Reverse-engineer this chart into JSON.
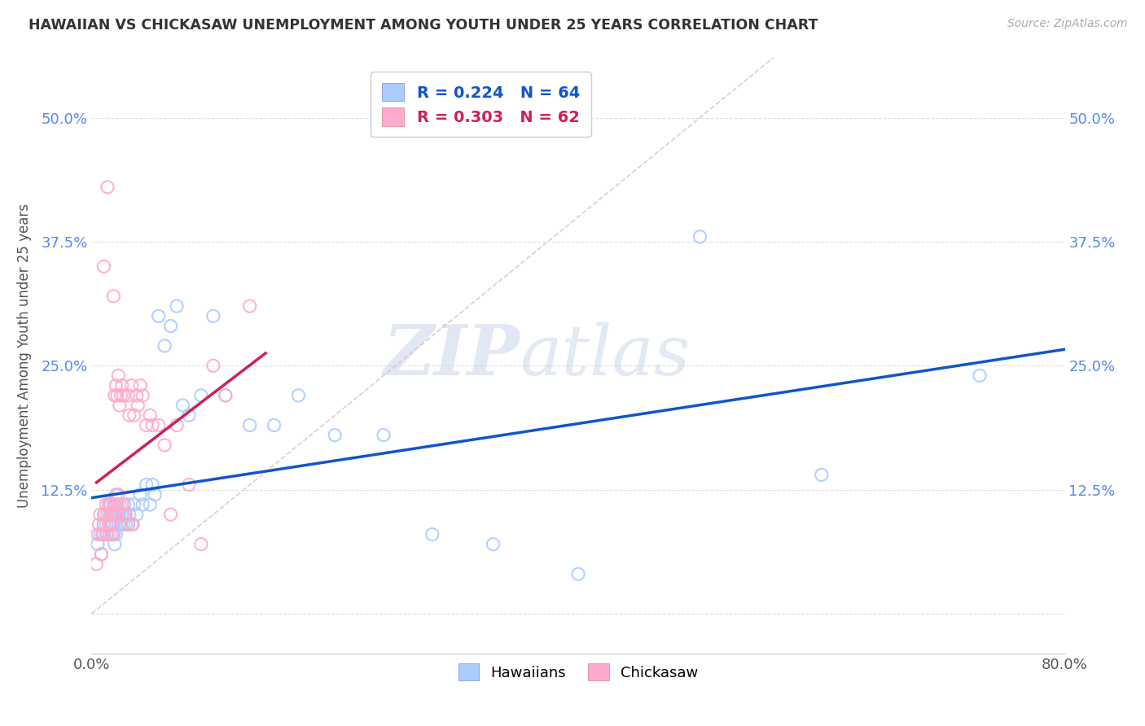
{
  "title": "HAWAIIAN VS CHICKASAW UNEMPLOYMENT AMONG YOUTH UNDER 25 YEARS CORRELATION CHART",
  "source": "Source: ZipAtlas.com",
  "ylabel": "Unemployment Among Youth under 25 years",
  "xlim": [
    0.0,
    0.8
  ],
  "ylim": [
    -0.04,
    0.56
  ],
  "xticks": [
    0.0,
    0.1,
    0.2,
    0.3,
    0.4,
    0.5,
    0.6,
    0.7,
    0.8
  ],
  "xticklabels": [
    "0.0%",
    "",
    "",
    "",
    "",
    "",
    "",
    "",
    "80.0%"
  ],
  "yticks": [
    0.0,
    0.125,
    0.25,
    0.375,
    0.5
  ],
  "yticklabels": [
    "",
    "12.5%",
    "25.0%",
    "37.5%",
    "50.0%"
  ],
  "hawaiians_R": "0.224",
  "hawaiians_N": "64",
  "chickasaw_R": "0.303",
  "chickasaw_N": "62",
  "hawaiians_color": "#aaccff",
  "chickasaw_color": "#ffaacc",
  "hawaiians_line_color": "#1155cc",
  "chickasaw_line_color": "#cc2255",
  "diagonal_color": "#ddbbcc",
  "background_color": "#ffffff",
  "watermark_zip": "ZIP",
  "watermark_atlas": "atlas",
  "hawaiians_x": [
    0.005,
    0.007,
    0.008,
    0.01,
    0.01,
    0.01,
    0.012,
    0.013,
    0.015,
    0.015,
    0.015,
    0.016,
    0.017,
    0.017,
    0.018,
    0.018,
    0.018,
    0.019,
    0.019,
    0.02,
    0.02,
    0.02,
    0.021,
    0.022,
    0.022,
    0.023,
    0.024,
    0.025,
    0.025,
    0.026,
    0.027,
    0.028,
    0.03,
    0.03,
    0.031,
    0.033,
    0.035,
    0.037,
    0.04,
    0.042,
    0.045,
    0.048,
    0.05,
    0.052,
    0.055,
    0.06,
    0.065,
    0.07,
    0.075,
    0.08,
    0.09,
    0.1,
    0.11,
    0.13,
    0.15,
    0.17,
    0.2,
    0.24,
    0.28,
    0.33,
    0.4,
    0.5,
    0.6,
    0.73
  ],
  "hawaiians_y": [
    0.07,
    0.08,
    0.06,
    0.1,
    0.09,
    0.08,
    0.09,
    0.08,
    0.11,
    0.1,
    0.09,
    0.1,
    0.09,
    0.08,
    0.1,
    0.09,
    0.08,
    0.11,
    0.07,
    0.12,
    0.1,
    0.08,
    0.11,
    0.1,
    0.09,
    0.1,
    0.09,
    0.11,
    0.1,
    0.09,
    0.1,
    0.09,
    0.11,
    0.09,
    0.1,
    0.09,
    0.11,
    0.1,
    0.12,
    0.11,
    0.13,
    0.11,
    0.13,
    0.12,
    0.3,
    0.27,
    0.29,
    0.31,
    0.21,
    0.2,
    0.22,
    0.3,
    0.22,
    0.19,
    0.19,
    0.22,
    0.18,
    0.18,
    0.08,
    0.07,
    0.04,
    0.38,
    0.14,
    0.24
  ],
  "chickasaw_x": [
    0.004,
    0.005,
    0.006,
    0.007,
    0.008,
    0.009,
    0.01,
    0.01,
    0.011,
    0.012,
    0.012,
    0.013,
    0.013,
    0.014,
    0.014,
    0.015,
    0.015,
    0.015,
    0.016,
    0.016,
    0.017,
    0.017,
    0.018,
    0.018,
    0.019,
    0.019,
    0.02,
    0.02,
    0.021,
    0.021,
    0.022,
    0.022,
    0.023,
    0.023,
    0.024,
    0.025,
    0.025,
    0.026,
    0.027,
    0.028,
    0.03,
    0.03,
    0.031,
    0.033,
    0.034,
    0.035,
    0.037,
    0.038,
    0.04,
    0.042,
    0.045,
    0.048,
    0.05,
    0.055,
    0.06,
    0.065,
    0.07,
    0.08,
    0.09,
    0.1,
    0.11,
    0.13
  ],
  "chickasaw_y": [
    0.05,
    0.08,
    0.09,
    0.1,
    0.06,
    0.08,
    0.35,
    0.09,
    0.1,
    0.11,
    0.08,
    0.43,
    0.1,
    0.09,
    0.11,
    0.09,
    0.08,
    0.1,
    0.11,
    0.09,
    0.1,
    0.08,
    0.32,
    0.11,
    0.22,
    0.1,
    0.23,
    0.11,
    0.22,
    0.1,
    0.24,
    0.12,
    0.21,
    0.11,
    0.22,
    0.23,
    0.1,
    0.22,
    0.11,
    0.1,
    0.22,
    0.09,
    0.2,
    0.23,
    0.09,
    0.2,
    0.22,
    0.21,
    0.23,
    0.22,
    0.19,
    0.2,
    0.19,
    0.19,
    0.17,
    0.1,
    0.19,
    0.13,
    0.07,
    0.25,
    0.22,
    0.31
  ]
}
